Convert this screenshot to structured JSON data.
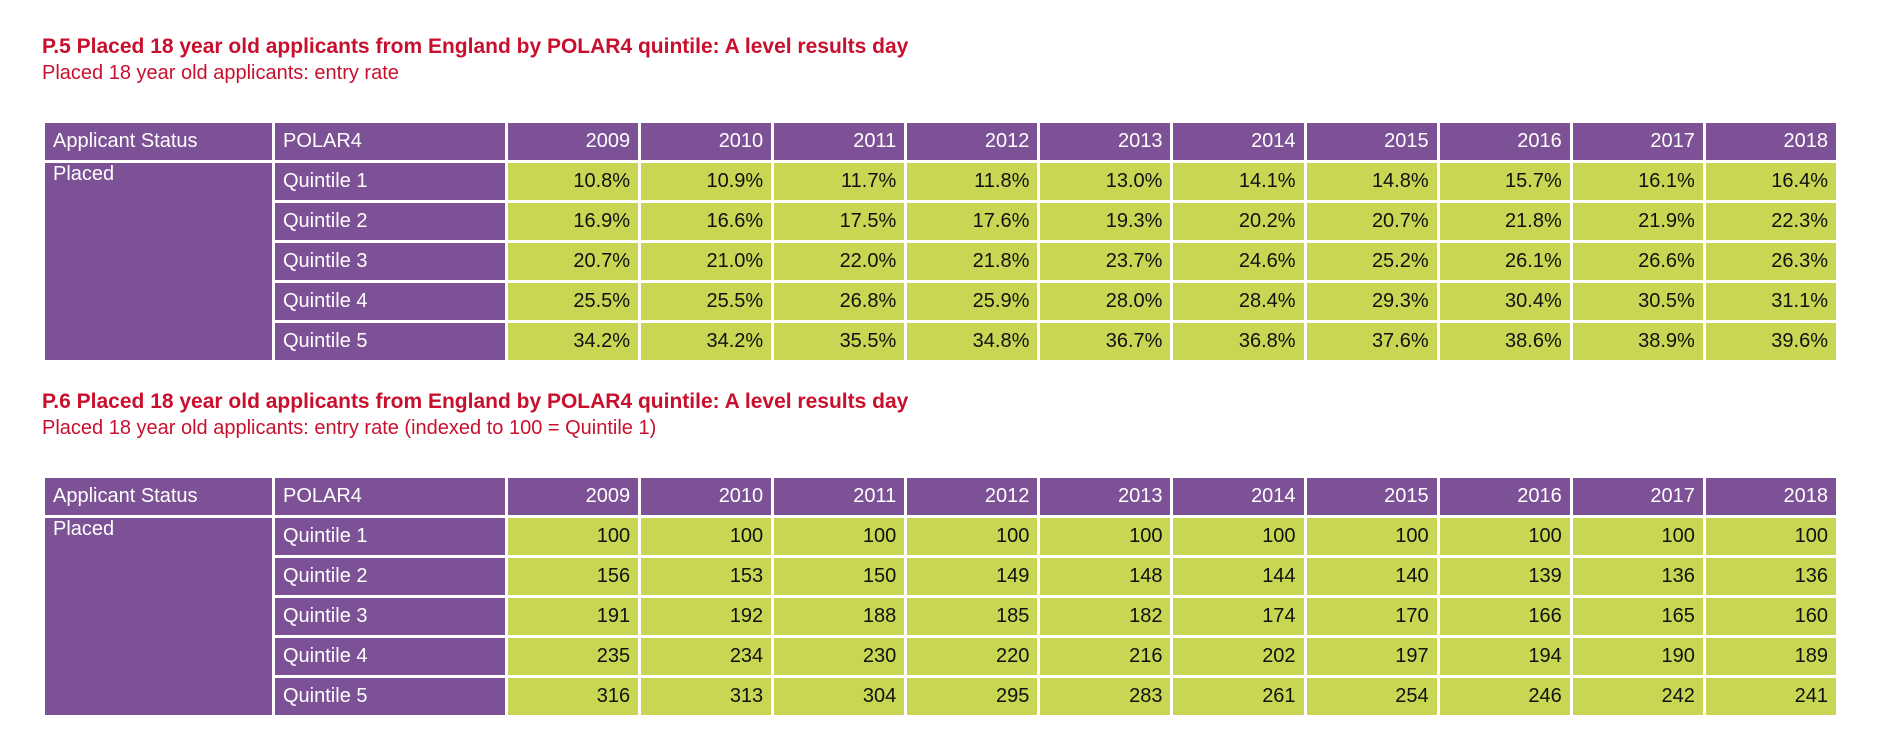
{
  "tables": [
    {
      "title": "P.5 Placed 18 year old applicants from England by POLAR4 quintile: A level results day",
      "subtitle": "Placed 18 year old applicants: entry rate",
      "header": {
        "status": "Applicant Status",
        "polar": "POLAR4",
        "years": [
          "2009",
          "2010",
          "2011",
          "2012",
          "2013",
          "2014",
          "2015",
          "2016",
          "2017",
          "2018"
        ]
      },
      "status_value": "Placed",
      "rows": [
        {
          "label": "Quintile 1",
          "values": [
            "10.8%",
            "10.9%",
            "11.7%",
            "11.8%",
            "13.0%",
            "14.1%",
            "14.8%",
            "15.7%",
            "16.1%",
            "16.4%"
          ]
        },
        {
          "label": "Quintile 2",
          "values": [
            "16.9%",
            "16.6%",
            "17.5%",
            "17.6%",
            "19.3%",
            "20.2%",
            "20.7%",
            "21.8%",
            "21.9%",
            "22.3%"
          ]
        },
        {
          "label": "Quintile 3",
          "values": [
            "20.7%",
            "21.0%",
            "22.0%",
            "21.8%",
            "23.7%",
            "24.6%",
            "25.2%",
            "26.1%",
            "26.6%",
            "26.3%"
          ]
        },
        {
          "label": "Quintile 4",
          "values": [
            "25.5%",
            "25.5%",
            "26.8%",
            "25.9%",
            "28.0%",
            "28.4%",
            "29.3%",
            "30.4%",
            "30.5%",
            "31.1%"
          ]
        },
        {
          "label": "Quintile 5",
          "values": [
            "34.2%",
            "34.2%",
            "35.5%",
            "34.8%",
            "36.7%",
            "36.8%",
            "37.6%",
            "38.6%",
            "38.9%",
            "39.6%"
          ]
        }
      ]
    },
    {
      "title": "P.6 Placed 18 year old applicants from England by POLAR4 quintile: A level results day",
      "subtitle": "Placed 18 year old applicants: entry rate (indexed to 100 = Quintile 1)",
      "header": {
        "status": "Applicant Status",
        "polar": "POLAR4",
        "years": [
          "2009",
          "2010",
          "2011",
          "2012",
          "2013",
          "2014",
          "2015",
          "2016",
          "2017",
          "2018"
        ]
      },
      "status_value": "Placed",
      "rows": [
        {
          "label": "Quintile 1",
          "values": [
            "100",
            "100",
            "100",
            "100",
            "100",
            "100",
            "100",
            "100",
            "100",
            "100"
          ]
        },
        {
          "label": "Quintile 2",
          "values": [
            "156",
            "153",
            "150",
            "149",
            "148",
            "144",
            "140",
            "139",
            "136",
            "136"
          ]
        },
        {
          "label": "Quintile 3",
          "values": [
            "191",
            "192",
            "188",
            "185",
            "182",
            "174",
            "170",
            "166",
            "165",
            "160"
          ]
        },
        {
          "label": "Quintile 4",
          "values": [
            "235",
            "234",
            "230",
            "220",
            "216",
            "202",
            "197",
            "194",
            "190",
            "189"
          ]
        },
        {
          "label": "Quintile 5",
          "values": [
            "316",
            "313",
            "304",
            "295",
            "283",
            "261",
            "254",
            "246",
            "242",
            "241"
          ]
        }
      ]
    }
  ],
  "colors": {
    "title": "#c8102e",
    "header_bg": "#7d5195",
    "cell_bg": "#c8d653"
  }
}
